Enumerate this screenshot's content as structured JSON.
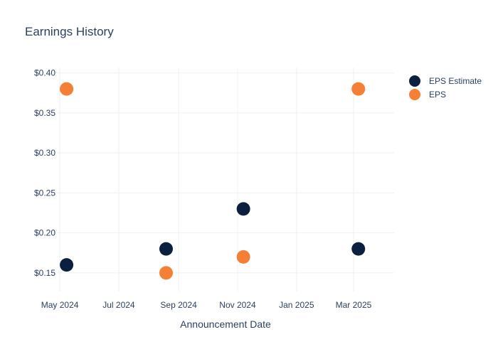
{
  "chart_data": {
    "type": "scatter",
    "title": "Earnings History",
    "xlabel": "Announcement Date",
    "ylabel": "",
    "x_ticks": [
      {
        "date": "2024-05-01",
        "label": "May 2024"
      },
      {
        "date": "2024-07-01",
        "label": "Jul 2024"
      },
      {
        "date": "2024-09-01",
        "label": "Sep 2024"
      },
      {
        "date": "2024-11-01",
        "label": "Nov 2024"
      },
      {
        "date": "2025-01-01",
        "label": "Jan 2025"
      },
      {
        "date": "2025-03-01",
        "label": "Mar 2025"
      }
    ],
    "y_ticks": [
      {
        "value": 0.15,
        "label": "$0.15"
      },
      {
        "value": 0.2,
        "label": "$0.20"
      },
      {
        "value": 0.25,
        "label": "$0.25"
      },
      {
        "value": 0.3,
        "label": "$0.30"
      },
      {
        "value": 0.35,
        "label": "$0.35"
      },
      {
        "value": 0.4,
        "label": "$0.40"
      }
    ],
    "xlim": [
      "2024-04-28",
      "2025-04-12"
    ],
    "ylim": [
      0.1268,
      0.4068
    ],
    "grid": true,
    "legend_position": "top-right",
    "series": [
      {
        "name": "EPS Estimate",
        "color": "#0b1f3f",
        "points": [
          {
            "x": "2024-05-08",
            "y": 0.16
          },
          {
            "x": "2024-08-19",
            "y": 0.18
          },
          {
            "x": "2024-11-07",
            "y": 0.23
          },
          {
            "x": "2025-03-06",
            "y": 0.18
          }
        ]
      },
      {
        "name": "EPS",
        "color": "#f47f35",
        "points": [
          {
            "x": "2024-05-08",
            "y": 0.38
          },
          {
            "x": "2024-08-19",
            "y": 0.15
          },
          {
            "x": "2024-11-07",
            "y": 0.17
          },
          {
            "x": "2025-03-06",
            "y": 0.38
          }
        ]
      }
    ]
  }
}
